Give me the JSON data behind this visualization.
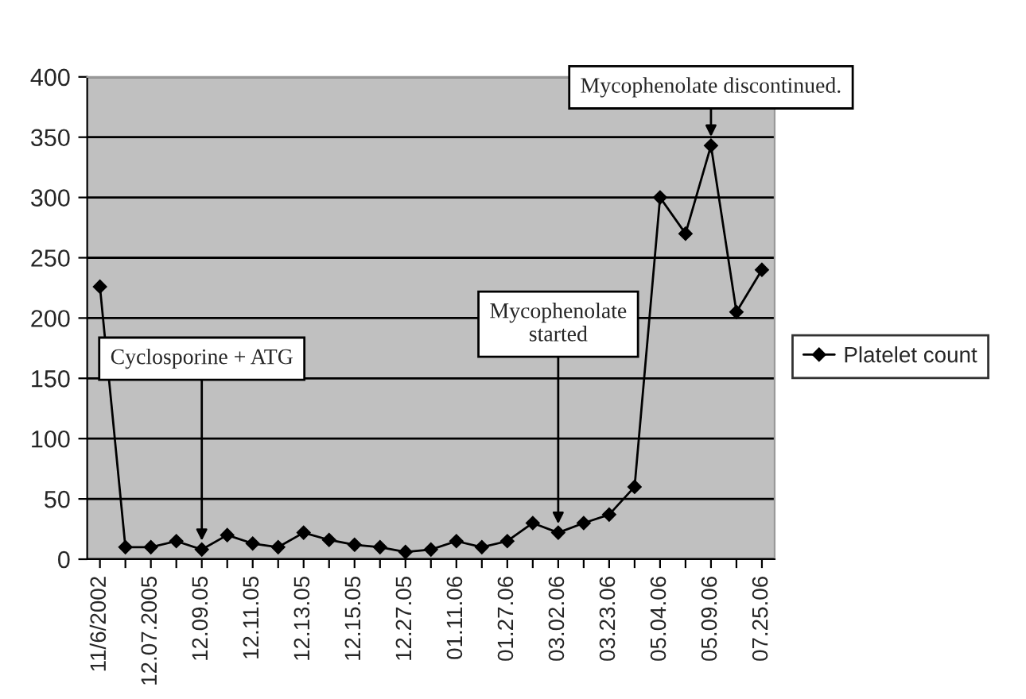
{
  "chart_data": {
    "type": "line",
    "categories": [
      "11/6/2002",
      null,
      "12.07.2005",
      null,
      "12.09.05",
      null,
      "12.11.05",
      null,
      "12.13.05",
      null,
      "12.15.05",
      null,
      "12.27.05",
      null,
      "01.11.06",
      null,
      "01.27.06",
      null,
      "03.02.06",
      null,
      "03.23.06",
      null,
      "05.04.06",
      null,
      "05.09.06",
      null,
      "07.25.06"
    ],
    "series": [
      {
        "name": "Platelet count",
        "color": "#000000",
        "values": [
          226,
          10,
          10,
          15,
          8,
          20,
          13,
          10,
          22,
          16,
          12,
          10,
          6,
          8,
          15,
          10,
          15,
          30,
          22,
          30,
          37,
          60,
          300,
          270,
          343,
          205,
          240
        ]
      }
    ],
    "ylim": [
      0,
      400
    ],
    "yticks": [
      0,
      50,
      100,
      150,
      200,
      250,
      300,
      350,
      400
    ],
    "grid": "y",
    "legend": "right",
    "marker": "diamond",
    "line_style": "solid",
    "annotations": [
      {
        "text": "Cyclosporine + ATG",
        "x": "12.09.05",
        "y": 8
      },
      {
        "text": "Mycophenolate\nstarted",
        "x": "03.02.06",
        "y": 22
      },
      {
        "text": "Mycophenolate discontinued.",
        "x": "05.09.06",
        "y": 343
      }
    ]
  }
}
